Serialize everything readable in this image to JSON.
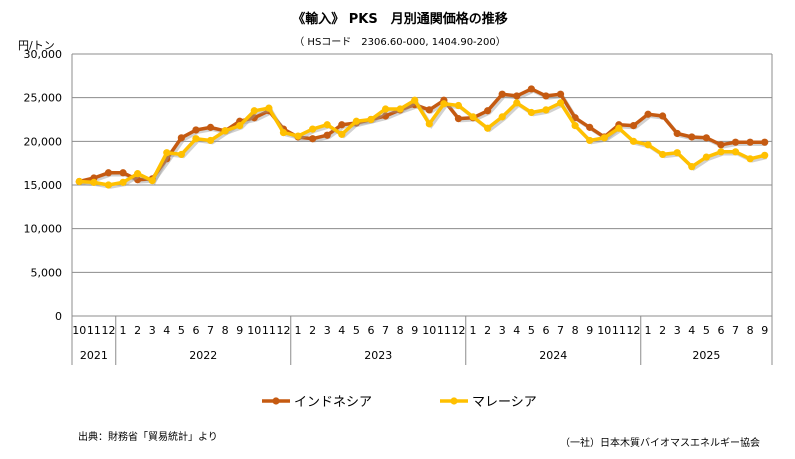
{
  "chart_data": {
    "type": "line",
    "title": "《輸入》 PKS　月別通関価格の推移",
    "subtitle": "（ HSコード　2306.60-000, 1404.90-200）",
    "ylabel": "円/トン",
    "ylim": [
      0,
      30000
    ],
    "yticks": [
      0,
      5000,
      10000,
      15000,
      20000,
      25000,
      30000
    ],
    "ytick_labels": [
      "0",
      "5,000",
      "10,000",
      "15,000",
      "20,000",
      "25,000",
      "30,000"
    ],
    "grid": true,
    "legend": "bottom",
    "years": [
      {
        "label": "2021",
        "months": [
          "10",
          "11",
          "12"
        ]
      },
      {
        "label": "2022",
        "months": [
          "1",
          "2",
          "3",
          "4",
          "5",
          "6",
          "7",
          "8",
          "9",
          "10",
          "11",
          "12"
        ]
      },
      {
        "label": "2023",
        "months": [
          "1",
          "2",
          "3",
          "4",
          "5",
          "6",
          "7",
          "8",
          "9",
          "10",
          "11",
          "12"
        ]
      },
      {
        "label": "2024",
        "months": [
          "1",
          "2",
          "3",
          "4",
          "5",
          "6",
          "7",
          "8",
          "9",
          "10",
          "11",
          "12"
        ]
      },
      {
        "label": "2025",
        "months": [
          "1",
          "2",
          "3",
          "4",
          "5",
          "6",
          "7",
          "8",
          "9"
        ]
      }
    ],
    "series": [
      {
        "name": "インドネシア",
        "color": "#C55A11",
        "values": [
          15400,
          15800,
          16400,
          16400,
          15600,
          15700,
          18000,
          20400,
          21300,
          21600,
          21200,
          22300,
          22700,
          23500,
          21400,
          20500,
          20300,
          20700,
          21900,
          22100,
          22500,
          22900,
          23600,
          24200,
          23600,
          24700,
          22600,
          22700,
          23500,
          25400,
          25200,
          26000,
          25200,
          25400,
          22700,
          21600,
          20500,
          21900,
          21800,
          23100,
          22900,
          20900,
          20500,
          20400,
          19600,
          19900,
          19900,
          19900
        ]
      },
      {
        "name": "マレーシア",
        "color": "#FFC000",
        "values": [
          15400,
          15300,
          15000,
          15300,
          16300,
          15500,
          18700,
          18500,
          20300,
          20100,
          21200,
          21800,
          23500,
          23800,
          21000,
          20600,
          21400,
          21900,
          20800,
          22300,
          22500,
          23700,
          23700,
          24700,
          22000,
          24300,
          24100,
          22800,
          21500,
          22800,
          24400,
          23300,
          23600,
          24400,
          21800,
          20100,
          20400,
          21500,
          20000,
          19600,
          18500,
          18700,
          17100,
          18200,
          18800,
          18800,
          18000,
          18400
        ]
      }
    ]
  },
  "footer": {
    "source": "出典：財務省「貿易統計」より",
    "credit": "（一社）日本木質バイオマスエネルギー協会"
  }
}
